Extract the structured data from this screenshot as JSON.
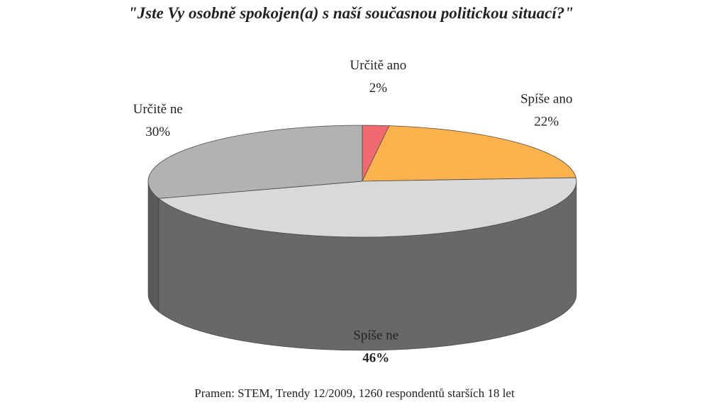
{
  "chart_data": {
    "type": "pie",
    "title": "\"Jste Vy osobně spokojen(a) s naší současnou politickou situací?\"",
    "source": "Pramen: STEM, Trendy 12/2009, 1260 respondentů starších 18 let",
    "slices": [
      {
        "label": "Určitě ano",
        "value": 2,
        "value_label": "2%",
        "color": "#f06a6f",
        "side_color": "#b84b50"
      },
      {
        "label": "Spíše ano",
        "value": 22,
        "value_label": "22%",
        "color": "#fdb24e",
        "side_color": "#c5812a"
      },
      {
        "label": "Spíše ne",
        "value": 46,
        "value_label": "46%",
        "color": "#d9d9d9",
        "side_color": "#686868",
        "emphasis": true
      },
      {
        "label": "Určitě ne",
        "value": 30,
        "value_label": "30%",
        "color": "#b2b2b2",
        "side_color": "#5a5a5a"
      }
    ],
    "start": "12 o'clock, clockwise",
    "style": "3d-tilted",
    "legend": "none (labels beside slices)"
  }
}
